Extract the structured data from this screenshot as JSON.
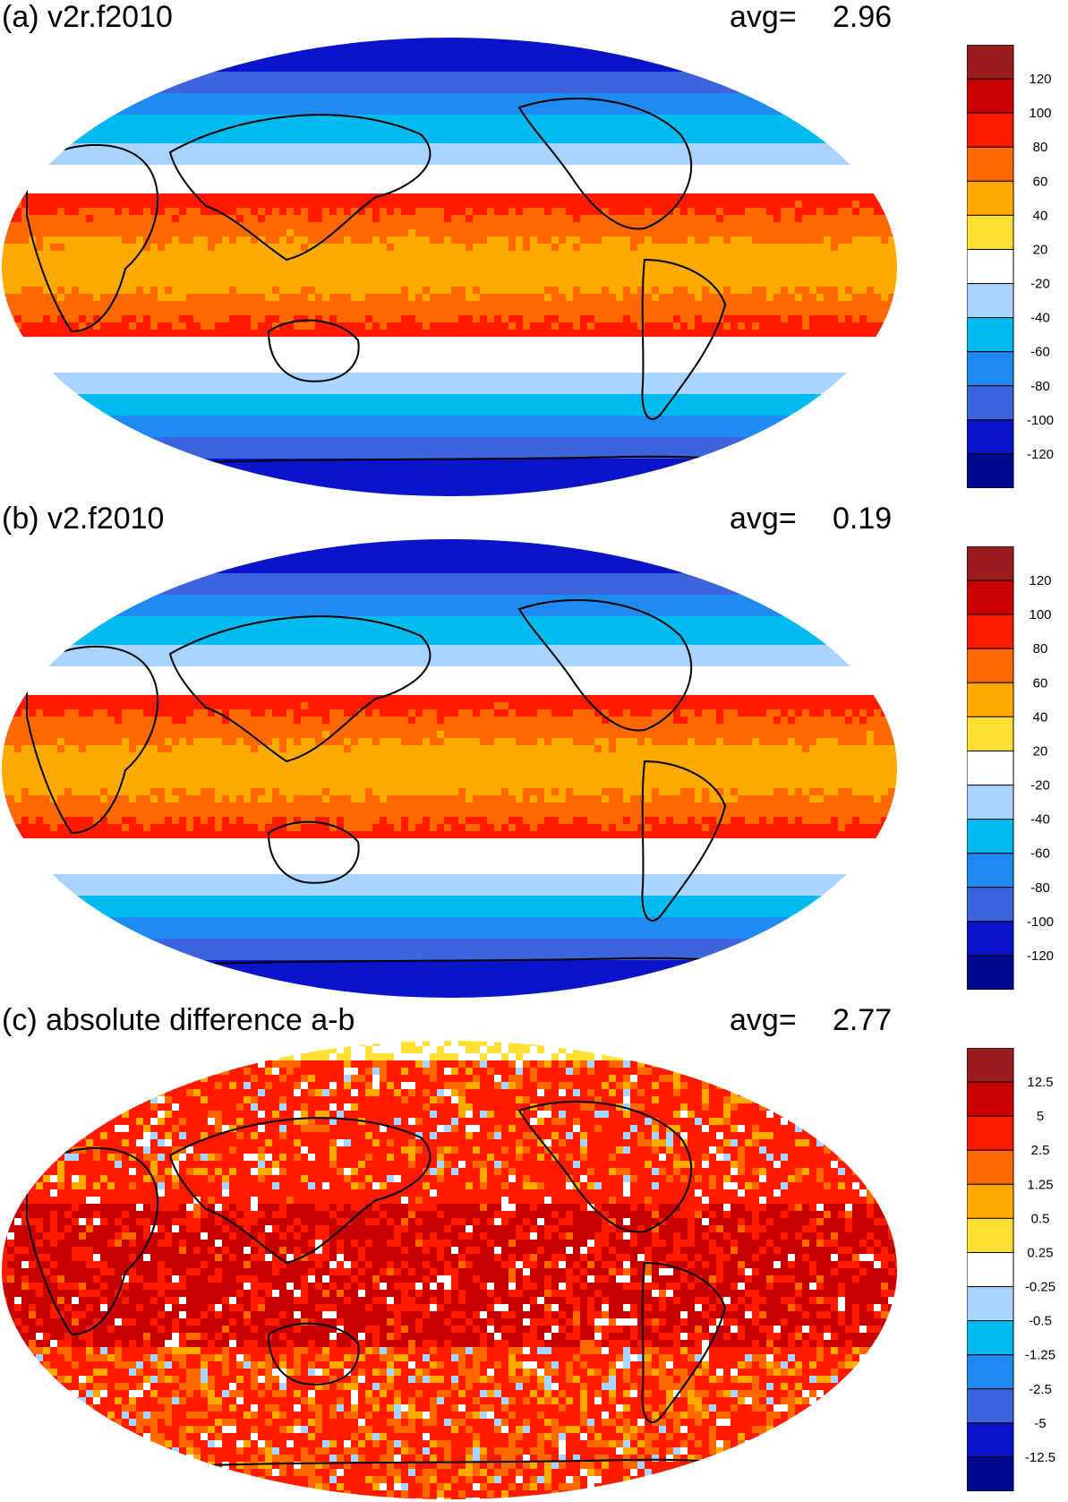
{
  "panels": [
    {
      "id": "a",
      "title": "(a) v2r.f2010",
      "avg_label": "avg=",
      "avg_value": "2.96",
      "legend": {
        "colors": [
          "#9b1c1f",
          "#c80000",
          "#ff1a00",
          "#ff6a00",
          "#ffaa00",
          "#ffe033",
          "#ffffff",
          "#a8d4ff",
          "#00baf0",
          "#1f8bf0",
          "#3c64dc",
          "#0a14c8",
          "#000a8c"
        ],
        "labels": [
          "120",
          "100",
          "80",
          "60",
          "40",
          "20",
          "-20",
          "-40",
          "-60",
          "-80",
          "-100",
          "-120"
        ]
      }
    },
    {
      "id": "b",
      "title": "(b) v2.f2010",
      "avg_label": "avg=",
      "avg_value": "0.19",
      "legend": {
        "colors": [
          "#9b1c1f",
          "#c80000",
          "#ff1a00",
          "#ff6a00",
          "#ffaa00",
          "#ffe033",
          "#ffffff",
          "#a8d4ff",
          "#00baf0",
          "#1f8bf0",
          "#3c64dc",
          "#0a14c8",
          "#000a8c"
        ],
        "labels": [
          "120",
          "100",
          "80",
          "60",
          "40",
          "20",
          "-20",
          "-40",
          "-60",
          "-80",
          "-100",
          "-120"
        ]
      }
    },
    {
      "id": "c",
      "title": "(c) absolute difference a-b",
      "avg_label": "avg=",
      "avg_value": "2.77",
      "legend": {
        "colors": [
          "#9b1c1f",
          "#c80000",
          "#ff1a00",
          "#ff6a00",
          "#ffaa00",
          "#ffe033",
          "#ffffff",
          "#a8d4ff",
          "#00baf0",
          "#1f8bf0",
          "#3c64dc",
          "#0a14c8",
          "#000a8c"
        ],
        "labels": [
          "12.5",
          "5",
          "2.5",
          "1.25",
          "0.5",
          "0.25",
          "-0.25",
          "-0.5",
          "-1.25",
          "-2.5",
          "-5",
          "-12.5"
        ]
      }
    }
  ]
}
